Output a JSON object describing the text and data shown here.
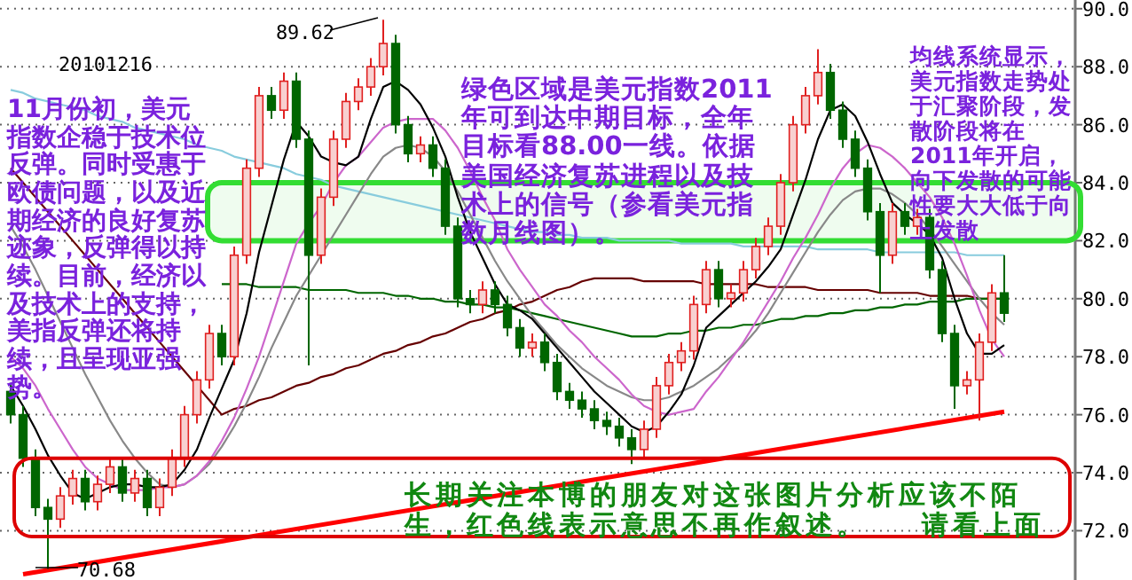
{
  "chart_data": {
    "type": "candlestick",
    "subtitle": "20101216",
    "categories": [
      null,
      null,
      null,
      null,
      null,
      null,
      null,
      null,
      null,
      null,
      null,
      null,
      null,
      null,
      null,
      null,
      null,
      null,
      null,
      null,
      null,
      null,
      null,
      null,
      null,
      null,
      null,
      null,
      null,
      null,
      null,
      null,
      null,
      null,
      null,
      null,
      null,
      null,
      null,
      null,
      null,
      null,
      null,
      null,
      null,
      null,
      null,
      null,
      null,
      null,
      null,
      null,
      null,
      null,
      null,
      null,
      null,
      null,
      null,
      null,
      null,
      null,
      null,
      null,
      null,
      null,
      null,
      null,
      null,
      null,
      null,
      null,
      null,
      null,
      null,
      null,
      null,
      null,
      null,
      null,
      null
    ],
    "ohlc": [
      [
        76.8,
        77.1,
        75.7,
        76.0
      ],
      [
        76.0,
        76.3,
        74.2,
        74.5
      ],
      [
        74.5,
        74.8,
        72.5,
        72.8
      ],
      [
        72.8,
        73.1,
        70.68,
        72.4
      ],
      [
        72.4,
        73.5,
        72.1,
        73.2
      ],
      [
        73.2,
        74.1,
        72.9,
        73.8
      ],
      [
        73.8,
        74.1,
        72.7,
        73.0
      ],
      [
        73.0,
        73.9,
        72.7,
        73.6
      ],
      [
        73.6,
        74.5,
        73.3,
        74.2
      ],
      [
        74.2,
        74.5,
        73.0,
        73.3
      ],
      [
        73.3,
        74.1,
        73.0,
        73.8
      ],
      [
        73.8,
        74.1,
        72.5,
        72.8
      ],
      [
        72.8,
        73.8,
        72.5,
        73.5
      ],
      [
        73.5,
        74.8,
        73.2,
        74.5
      ],
      [
        74.5,
        76.3,
        74.2,
        76.0
      ],
      [
        76.0,
        77.5,
        75.7,
        77.2
      ],
      [
        77.2,
        79.1,
        76.9,
        78.8
      ],
      [
        78.8,
        79.1,
        77.7,
        78.0
      ],
      [
        78.0,
        81.8,
        77.7,
        81.5
      ],
      [
        81.5,
        84.8,
        81.2,
        84.5
      ],
      [
        84.5,
        87.3,
        84.2,
        87.0
      ],
      [
        87.0,
        87.3,
        86.2,
        86.5
      ],
      [
        86.5,
        87.8,
        86.2,
        87.5
      ],
      [
        87.5,
        87.8,
        85.2,
        85.5
      ],
      [
        85.5,
        85.8,
        77.7,
        81.5
      ],
      [
        81.5,
        83.8,
        81.2,
        83.5
      ],
      [
        83.5,
        85.8,
        83.2,
        85.5
      ],
      [
        85.5,
        87.1,
        85.2,
        86.8
      ],
      [
        86.8,
        87.6,
        86.5,
        87.3
      ],
      [
        87.3,
        88.3,
        87.0,
        88.0
      ],
      [
        88.0,
        89.62,
        87.7,
        88.8
      ],
      [
        88.8,
        89.1,
        85.7,
        86.0
      ],
      [
        86.0,
        86.3,
        84.7,
        85.0
      ],
      [
        85.0,
        85.6,
        84.7,
        85.3
      ],
      [
        85.3,
        85.6,
        84.2,
        84.5
      ],
      [
        84.5,
        84.8,
        82.2,
        82.5
      ],
      [
        82.5,
        82.8,
        79.7,
        80.0
      ],
      [
        80.0,
        80.3,
        79.5,
        79.8
      ],
      [
        79.8,
        80.6,
        79.5,
        80.3
      ],
      [
        80.3,
        80.6,
        79.5,
        79.8
      ],
      [
        79.8,
        80.1,
        78.7,
        79.0
      ],
      [
        79.0,
        79.3,
        78.0,
        78.3
      ],
      [
        78.3,
        78.8,
        78.0,
        78.5
      ],
      [
        78.5,
        78.8,
        77.5,
        77.8
      ],
      [
        77.8,
        78.1,
        76.5,
        76.8
      ],
      [
        76.8,
        77.1,
        76.2,
        76.5
      ],
      [
        76.5,
        76.8,
        75.9,
        76.2
      ],
      [
        76.2,
        76.5,
        75.5,
        75.8
      ],
      [
        75.8,
        76.1,
        75.3,
        75.6
      ],
      [
        75.6,
        75.9,
        74.9,
        75.2
      ],
      [
        75.2,
        75.5,
        74.3,
        74.8
      ],
      [
        74.8,
        75.8,
        74.5,
        75.5
      ],
      [
        75.5,
        77.3,
        75.2,
        77.0
      ],
      [
        77.0,
        78.1,
        76.7,
        77.8
      ],
      [
        77.8,
        78.5,
        77.5,
        78.2
      ],
      [
        78.2,
        80.1,
        77.9,
        79.8
      ],
      [
        79.8,
        81.3,
        79.5,
        81.0
      ],
      [
        81.0,
        81.3,
        79.7,
        80.0
      ],
      [
        80.0,
        80.5,
        79.7,
        80.2
      ],
      [
        80.2,
        81.3,
        79.9,
        81.0
      ],
      [
        81.0,
        82.1,
        80.7,
        81.8
      ],
      [
        81.8,
        82.8,
        81.5,
        82.5
      ],
      [
        82.5,
        84.3,
        82.2,
        84.0
      ],
      [
        84.0,
        86.3,
        83.7,
        86.0
      ],
      [
        86.0,
        87.3,
        85.7,
        87.0
      ],
      [
        87.0,
        88.6,
        86.7,
        87.8
      ],
      [
        87.8,
        88.1,
        86.2,
        86.5
      ],
      [
        86.5,
        86.8,
        85.2,
        85.5
      ],
      [
        85.5,
        85.8,
        84.2,
        84.5
      ],
      [
        84.5,
        84.8,
        82.7,
        83.0
      ],
      [
        83.0,
        83.3,
        80.2,
        81.5
      ],
      [
        81.5,
        83.3,
        81.2,
        83.0
      ],
      [
        83.0,
        83.3,
        82.2,
        82.5
      ],
      [
        82.5,
        83.1,
        82.2,
        82.8
      ],
      [
        82.8,
        83.1,
        80.7,
        81.0
      ],
      [
        81.0,
        81.3,
        78.5,
        78.8
      ],
      [
        78.8,
        79.1,
        76.2,
        77.0
      ],
      [
        77.0,
        77.5,
        76.7,
        77.2
      ],
      [
        77.2,
        78.8,
        75.8,
        78.5
      ],
      [
        78.5,
        80.5,
        78.2,
        80.2
      ],
      [
        80.2,
        81.5,
        79.2,
        79.5
      ]
    ],
    "series": [
      {
        "type": "line",
        "color": "#88ccdd",
        "values": [
          87.2,
          87.1,
          86.9,
          86.8,
          86.7,
          86.6,
          86.5,
          86.3,
          86.2,
          86.1,
          85.9,
          85.8,
          85.7,
          85.6,
          85.5,
          85.3,
          85.2,
          85.1,
          84.9,
          84.8,
          84.7,
          84.6,
          84.5,
          84.3,
          84.2,
          84.1,
          83.9,
          83.8,
          83.7,
          83.6,
          83.5,
          83.4,
          83.3,
          83.2,
          83.1,
          83.0,
          82.9,
          82.8,
          82.7,
          82.6,
          82.5,
          82.4,
          82.3,
          82.3,
          82.2,
          82.2,
          82.1,
          82.1,
          82.1,
          82.0,
          82.0,
          82.0,
          82.0,
          82.0,
          81.9,
          81.9,
          81.9,
          81.9,
          81.9,
          81.8,
          81.8,
          81.8,
          81.8,
          81.8,
          81.8,
          81.7,
          81.7,
          81.7,
          81.7,
          81.7,
          81.6,
          81.6,
          81.6,
          81.6,
          81.6,
          81.6,
          81.6,
          81.5,
          81.5,
          81.5,
          81.5
        ]
      },
      {
        "type": "line",
        "color": "#660000",
        "values": [
          84.5,
          84.0,
          83.5,
          83.0,
          82.5,
          82.0,
          81.5,
          81.0,
          80.5,
          80.0,
          79.5,
          79.0,
          78.5,
          78.0,
          77.5,
          77.0,
          76.5,
          76.0,
          76.2,
          76.3,
          76.5,
          76.6,
          76.8,
          77.0,
          77.1,
          77.3,
          77.4,
          77.6,
          77.7,
          77.9,
          78.1,
          78.2,
          78.4,
          78.5,
          78.7,
          78.8,
          79.0,
          79.2,
          79.3,
          79.5,
          79.6,
          79.8,
          79.9,
          80.1,
          80.3,
          80.4,
          80.6,
          80.7,
          80.7,
          80.7,
          80.7,
          80.6,
          80.6,
          80.6,
          80.6,
          80.6,
          80.5,
          80.5,
          80.5,
          80.5,
          80.5,
          80.4,
          80.4,
          80.4,
          80.4,
          80.3,
          80.3,
          80.3,
          80.3,
          80.3,
          80.2,
          80.2,
          80.2,
          80.2,
          80.1,
          80.1,
          80.1,
          80.1,
          80.0,
          80.0,
          80.0
        ]
      },
      {
        "type": "line",
        "color": "#006600",
        "values": [
          null,
          null,
          null,
          null,
          null,
          null,
          null,
          null,
          null,
          null,
          null,
          null,
          null,
          null,
          null,
          null,
          null,
          80.5,
          80.5,
          80.5,
          80.4,
          80.4,
          80.4,
          80.4,
          80.3,
          80.3,
          80.3,
          80.3,
          80.2,
          80.2,
          80.2,
          80.1,
          80.1,
          80.0,
          80.0,
          79.9,
          79.9,
          79.8,
          79.8,
          79.7,
          79.7,
          79.6,
          79.5,
          79.4,
          79.3,
          79.2,
          79.1,
          79.0,
          78.9,
          78.8,
          78.7,
          78.7,
          78.7,
          78.8,
          78.8,
          78.9,
          78.9,
          79.0,
          79.0,
          79.1,
          79.1,
          79.2,
          79.3,
          79.3,
          79.4,
          79.4,
          79.5,
          79.5,
          79.6,
          79.6,
          79.7,
          79.7,
          79.8,
          79.8,
          79.9,
          79.9,
          79.9,
          80.0,
          80.0,
          80.0,
          80.0
        ]
      },
      {
        "type": "line",
        "color": "#888888",
        "values": [
          82.5,
          81.8,
          81.0,
          80.1,
          79.2,
          78.3,
          77.4,
          76.6,
          75.8,
          75.1,
          74.5,
          74.0,
          73.6,
          73.5,
          73.6,
          73.9,
          74.3,
          74.9,
          75.6,
          76.4,
          77.3,
          78.3,
          79.2,
          80.1,
          80.8,
          81.5,
          82.2,
          82.9,
          83.6,
          84.3,
          84.9,
          85.2,
          85.3,
          85.2,
          84.9,
          84.4,
          83.7,
          82.9,
          82.1,
          81.3,
          80.6,
          80.0,
          79.4,
          78.9,
          78.4,
          78.0,
          77.6,
          77.3,
          77.0,
          76.8,
          76.6,
          76.5,
          76.5,
          76.6,
          76.8,
          77.0,
          77.3,
          77.6,
          78.0,
          78.4,
          78.9,
          79.5,
          80.2,
          80.9,
          81.6,
          82.3,
          82.9,
          83.4,
          83.7,
          83.8,
          83.8,
          83.6,
          83.3,
          82.9,
          82.4,
          81.8,
          81.2,
          80.6,
          80.0,
          79.5,
          79.1
        ]
      },
      {
        "type": "line",
        "color": "#cc66cc",
        "values": [
          78.0,
          77.6,
          77.0,
          76.2,
          75.5,
          74.8,
          74.2,
          73.8,
          73.6,
          73.4,
          73.4,
          73.4,
          73.5,
          73.5,
          73.6,
          73.9,
          74.4,
          75.1,
          75.9,
          76.9,
          78.0,
          79.3,
          80.6,
          81.9,
          82.6,
          83.2,
          84.0,
          84.6,
          84.9,
          85.4,
          85.9,
          86.1,
          86.2,
          86.2,
          86.2,
          85.8,
          85.2,
          84.4,
          83.5,
          82.7,
          81.7,
          81.0,
          80.4,
          79.8,
          79.4,
          78.9,
          78.5,
          78.0,
          77.6,
          77.2,
          76.7,
          76.3,
          76.1,
          76.0,
          76.1,
          76.2,
          76.8,
          77.3,
          77.9,
          78.5,
          79.2,
          79.9,
          80.6,
          81.4,
          82.1,
          82.9,
          83.8,
          84.5,
          85.0,
          85.3,
          85.2,
          84.9,
          84.5,
          84.0,
          83.5,
          82.8,
          81.9,
          80.8,
          79.6,
          78.6,
          78.0
        ]
      },
      {
        "type": "line",
        "color": "#000000",
        "values": [
          77.0,
          76.3,
          75.5,
          74.6,
          73.9,
          73.3,
          73.1,
          73.3,
          73.5,
          73.6,
          73.6,
          73.5,
          73.5,
          73.6,
          74.1,
          74.8,
          75.9,
          76.9,
          77.9,
          79.5,
          81.6,
          83.2,
          84.8,
          86.1,
          85.6,
          84.9,
          84.7,
          84.6,
          84.9,
          86.2,
          87.3,
          87.5,
          87.2,
          86.7,
          85.9,
          84.9,
          83.5,
          82.3,
          81.4,
          80.5,
          79.8,
          79.6,
          79.3,
          78.8,
          78.3,
          77.8,
          77.3,
          76.8,
          76.4,
          76.0,
          75.6,
          75.4,
          75.6,
          76.1,
          76.7,
          77.7,
          79.0,
          79.4,
          79.8,
          80.2,
          80.6,
          81.1,
          81.7,
          82.9,
          84.1,
          85.5,
          86.5,
          86.7,
          86.3,
          85.4,
          84.3,
          83.3,
          82.9,
          82.6,
          82.2,
          81.4,
          80.0,
          78.8,
          78.1,
          78.1,
          78.4
        ]
      },
      {
        "type": "line",
        "color": "#ff0000",
        "values": [
          null,
          70.5,
          null,
          null,
          null,
          null,
          null,
          null,
          null,
          null,
          null,
          null,
          null,
          null,
          null,
          null,
          null,
          null,
          null,
          null,
          null,
          null,
          null,
          null,
          null,
          null,
          null,
          null,
          null,
          null,
          null,
          null,
          null,
          null,
          null,
          null,
          null,
          null,
          null,
          null,
          null,
          null,
          null,
          null,
          null,
          null,
          null,
          null,
          null,
          null,
          null,
          null,
          null,
          null,
          null,
          null,
          null,
          null,
          null,
          null,
          null,
          null,
          null,
          null,
          null,
          null,
          null,
          null,
          null,
          null,
          null,
          null,
          null,
          null,
          null,
          null,
          null,
          null,
          null,
          null,
          76.1
        ]
      }
    ],
    "bands": [
      {
        "axis": "y",
        "from": 82,
        "to": 84,
        "color": "#33dd33"
      }
    ],
    "annotations": [
      "89.62",
      "70.68",
      "11月份初，美元指数企稳于技术位反弹。同时受惠于欧债问题，以及近期经济的良好复苏迹象，反弹得以持续。目前，经济以及技术上的支持，美指反弹还将持续，且呈现亚强势。",
      "绿色区域是美元指数2011年可到达中期目标，全年目标看88.00一线。依据美国经济复苏进程以及技术上的信号（参看美元指数月线图）。",
      "均线系统显示，美元指数走势处于汇聚阶段，发散阶段将在2011年开启，向下发散的可能性要大大低于向上发散",
      "长期关注本博的朋友对这张图片分析应该不陌生，红色线表示意思不再作叙述。    请看上面"
    ],
    "ylim": [
      70.3,
      90.3
    ],
    "yticks": [
      {
        "value": 72,
        "label": "72.0"
      },
      {
        "value": 74,
        "label": "74.0"
      },
      {
        "value": 76,
        "label": "76.0"
      },
      {
        "value": 78,
        "label": "78.0"
      },
      {
        "value": 80,
        "label": "80.0"
      },
      {
        "value": 82,
        "label": "82.0"
      },
      {
        "value": 84,
        "label": "84.0"
      },
      {
        "value": 86,
        "label": "86.0"
      },
      {
        "value": 88,
        "label": "88.0"
      },
      {
        "value": 90,
        "label": "90.0"
      }
    ],
    "grid": "y",
    "tick_labels": "y"
  }
}
